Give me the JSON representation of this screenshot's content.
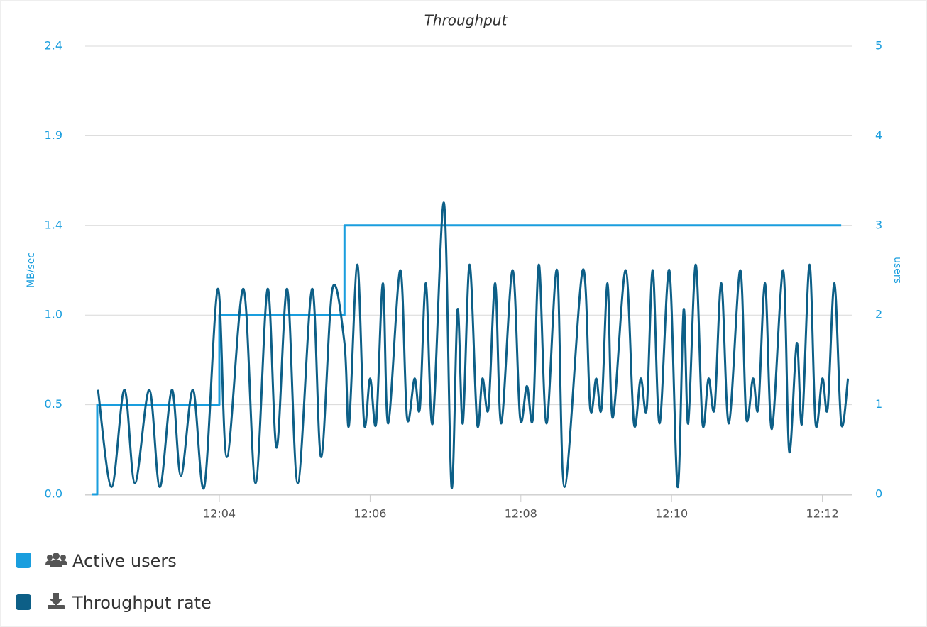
{
  "chart_data": {
    "type": "line",
    "title": "Throughput",
    "y_label": "MB/sec",
    "y2_label": "users",
    "xlim": [
      2.22,
      12.39
    ],
    "xticks": [
      {
        "value": 4,
        "label": "12:04"
      },
      {
        "value": 6,
        "label": "12:06"
      },
      {
        "value": 8,
        "label": "12:08"
      },
      {
        "value": 10,
        "label": "12:10"
      },
      {
        "value": 12,
        "label": "12:12"
      }
    ],
    "ylim": [
      0,
      2.4
    ],
    "yticks": [
      {
        "value": 0,
        "label": "0.0"
      },
      {
        "value": 0.48,
        "label": "0.5"
      },
      {
        "value": 0.96,
        "label": "1.0"
      },
      {
        "value": 1.44,
        "label": "1.4"
      },
      {
        "value": 1.92,
        "label": "1.9"
      },
      2.4
    ],
    "y2lim": [
      0,
      5
    ],
    "y2ticks": [
      0,
      1,
      2,
      3,
      4,
      5
    ],
    "grid": true,
    "series": [
      {
        "name": "Active users",
        "color": "#1a9ede",
        "axis": "y2",
        "step": true,
        "x": [
          2.31,
          2.38,
          4.0,
          5.66,
          12.25
        ],
        "values": [
          0,
          1,
          2,
          3,
          3
        ]
      },
      {
        "name": "Throughput rate",
        "color": "#0d5f87",
        "axis": "y",
        "smooth": true,
        "x": [
          2.39,
          2.57,
          2.74,
          2.88,
          3.07,
          3.21,
          3.37,
          3.49,
          3.65,
          3.8,
          3.98,
          4.1,
          4.32,
          4.48,
          4.64,
          4.76,
          4.9,
          5.04,
          5.23,
          5.35,
          5.5,
          5.66,
          5.72,
          5.83,
          5.92,
          6.0,
          6.08,
          6.17,
          6.24,
          6.4,
          6.49,
          6.59,
          6.66,
          6.74,
          6.83,
          6.98,
          7.08,
          7.16,
          7.23,
          7.32,
          7.42,
          7.49,
          7.57,
          7.66,
          7.74,
          7.89,
          7.99,
          8.08,
          8.16,
          8.24,
          8.34,
          8.48,
          8.58,
          8.82,
          8.92,
          9.0,
          9.07,
          9.15,
          9.22,
          9.39,
          9.5,
          9.59,
          9.67,
          9.75,
          9.84,
          9.97,
          10.08,
          10.16,
          10.22,
          10.32,
          10.41,
          10.49,
          10.57,
          10.66,
          10.76,
          10.91,
          10.99,
          11.08,
          11.15,
          11.24,
          11.33,
          11.48,
          11.56,
          11.66,
          11.73,
          11.83,
          11.91,
          12.0,
          12.07,
          12.16,
          12.25,
          12.34
        ],
        "values": [
          0.56,
          0.04,
          0.56,
          0.06,
          0.56,
          0.04,
          0.56,
          0.1,
          0.56,
          0.04,
          1.1,
          0.2,
          1.1,
          0.06,
          1.1,
          0.25,
          1.1,
          0.06,
          1.1,
          0.2,
          1.1,
          0.81,
          0.37,
          1.23,
          0.38,
          0.62,
          0.38,
          1.13,
          0.38,
          1.2,
          0.41,
          0.62,
          0.46,
          1.13,
          0.38,
          1.56,
          0.04,
          0.99,
          0.38,
          1.23,
          0.38,
          0.62,
          0.46,
          1.13,
          0.38,
          1.2,
          0.41,
          0.58,
          0.41,
          1.23,
          0.38,
          1.2,
          0.04,
          1.2,
          0.46,
          0.62,
          0.46,
          1.13,
          0.41,
          1.2,
          0.38,
          0.62,
          0.46,
          1.2,
          0.38,
          1.2,
          0.04,
          0.99,
          0.38,
          1.23,
          0.38,
          0.62,
          0.46,
          1.13,
          0.38,
          1.2,
          0.41,
          0.62,
          0.46,
          1.13,
          0.35,
          1.2,
          0.23,
          0.81,
          0.38,
          1.23,
          0.38,
          0.62,
          0.46,
          1.13,
          0.38,
          0.62
        ]
      }
    ]
  }
}
